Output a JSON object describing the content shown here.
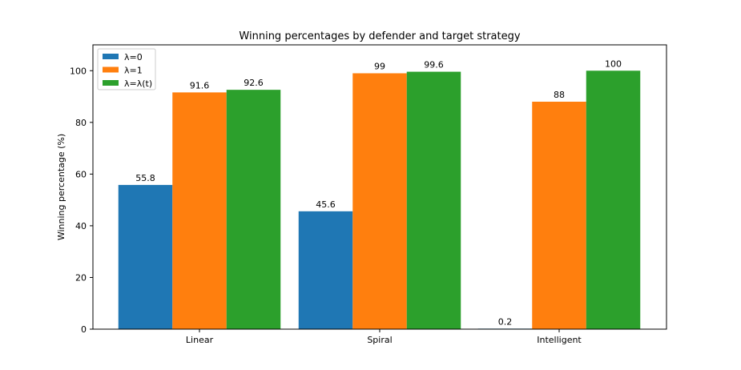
{
  "chart_data": {
    "type": "bar",
    "title": "Winning percentages by defender and target strategy",
    "xlabel": "",
    "ylabel": "Winning percentage (%)",
    "categories": [
      "Linear",
      "Spiral",
      "Intelligent"
    ],
    "series": [
      {
        "name": "λ=0",
        "color": "#1f77b4",
        "values": [
          55.8,
          45.6,
          0.2
        ],
        "labels": [
          "55.8",
          "45.6",
          "0.2"
        ]
      },
      {
        "name": "λ=1",
        "color": "#ff7f0e",
        "values": [
          91.6,
          99,
          88
        ],
        "labels": [
          "91.6",
          "99",
          "88"
        ]
      },
      {
        "name": "λ=λ(t)",
        "color": "#2ca02c",
        "values": [
          92.6,
          99.6,
          100
        ],
        "labels": [
          "92.6",
          "99.6",
          "100"
        ]
      }
    ],
    "ylim": [
      0,
      110
    ],
    "yticks": [
      0,
      20,
      40,
      60,
      80,
      100
    ],
    "grid": false,
    "legend_position": "top-left"
  }
}
